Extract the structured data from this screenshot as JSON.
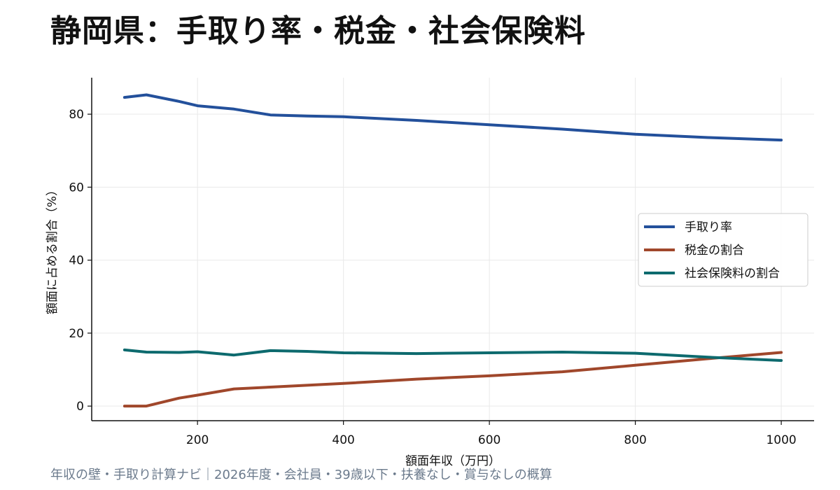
{
  "chart_data": {
    "type": "line",
    "title": "静岡県：手取り率・税金・社会保険料",
    "xlabel": "額面年収（万円）",
    "ylabel": "額面に占める割合（%）",
    "xlim": [
      55,
      1045
    ],
    "ylim": [
      -4,
      90
    ],
    "x_ticks": [
      200,
      400,
      600,
      800,
      1000
    ],
    "y_ticks": [
      0,
      20,
      40,
      60,
      80
    ],
    "grid": true,
    "legend_position": "right",
    "x": [
      100,
      130,
      175,
      200,
      250,
      300,
      350,
      400,
      500,
      600,
      700,
      800,
      900,
      1000
    ],
    "series": [
      {
        "name": "手取り率",
        "color": "#23509b",
        "values": [
          84.6,
          85.3,
          83.5,
          82.3,
          81.4,
          79.8,
          79.5,
          79.3,
          78.3,
          77.1,
          75.9,
          74.5,
          73.6,
          72.9
        ]
      },
      {
        "name": "税金の割合",
        "color": "#a0472b",
        "values": [
          0.0,
          0.0,
          2.2,
          3.0,
          4.7,
          5.2,
          5.7,
          6.2,
          7.4,
          8.3,
          9.4,
          11.2,
          13.0,
          14.7
        ]
      },
      {
        "name": "社会保険料の割合",
        "color": "#0d6a6e",
        "values": [
          15.4,
          14.8,
          14.7,
          14.9,
          14.0,
          15.2,
          15.0,
          14.6,
          14.4,
          14.6,
          14.8,
          14.5,
          13.4,
          12.5
        ]
      }
    ]
  },
  "footer": "年収の壁・手取り計算ナビ｜2026年度・会社員・39歳以下・扶養なし・賞与なしの概算"
}
